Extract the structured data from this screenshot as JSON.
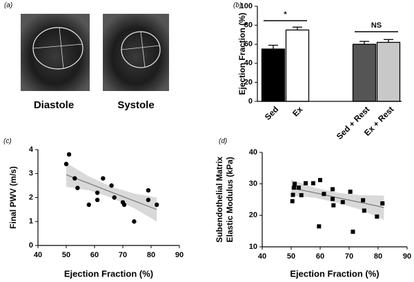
{
  "panel_a": {
    "label": "(a)",
    "captions": [
      "Diastole",
      "Systole"
    ]
  },
  "chart_data": [
    {
      "type": "bar",
      "label": "(b)",
      "ylabel": "Ejection  Fraction (%)",
      "categories": [
        "Sed",
        "Ex",
        "Sed + Rest",
        "Ex + Rest"
      ],
      "values": [
        55,
        75,
        60,
        62
      ],
      "errors": [
        4,
        3,
        3,
        3
      ],
      "colors": [
        "#000000",
        "#ffffff",
        "#555555",
        "#c8c8c8"
      ],
      "ylim": [
        0,
        100
      ],
      "yticks": [
        0,
        20,
        40,
        60,
        80,
        100
      ],
      "annotations": [
        "*",
        "NS"
      ]
    },
    {
      "type": "scatter",
      "label": "(c)",
      "xlabel": "Ejection Fraction (%)",
      "ylabel": "Final PWV (m/s)",
      "x": [
        51,
        50,
        53,
        54,
        58,
        61,
        61,
        63,
        66,
        67,
        70,
        70.5,
        74,
        79,
        79,
        82
      ],
      "y": [
        3.8,
        3.4,
        2.8,
        2.4,
        1.7,
        2.2,
        1.9,
        2.8,
        2.5,
        2.0,
        1.8,
        1.7,
        1.0,
        2.3,
        1.9,
        1.7
      ],
      "color": "#000000",
      "xlim": [
        40,
        90
      ],
      "xticks": [
        40,
        50,
        60,
        70,
        80,
        90
      ],
      "ylim": [
        0,
        4
      ],
      "yticks": [
        0,
        1,
        2,
        3,
        4
      ],
      "fit": {
        "x": [
          50,
          58,
          66,
          74,
          82
        ],
        "y": [
          2.95,
          2.59,
          2.22,
          1.86,
          1.5
        ],
        "lower": [
          2.45,
          2.3,
          2.0,
          1.55,
          1.0
        ],
        "upper": [
          3.45,
          2.88,
          2.45,
          2.17,
          2.0
        ]
      }
    },
    {
      "type": "scatter",
      "label": "(d)",
      "xlabel": "Ejection Fraction (%)",
      "ylabel": [
        "Subendothelial Matrix",
        "Elastic Modulus (kPa)"
      ],
      "x": [
        50.4,
        50.6,
        51,
        51.2,
        52.6,
        53.5,
        55,
        57.6,
        59.6,
        60,
        61.3,
        64.3,
        64.3,
        64.6,
        67.8,
        70.4,
        71.3,
        74.8,
        75.2,
        79.6,
        81.5
      ],
      "y": [
        24.5,
        26.5,
        28.8,
        30,
        28.8,
        26.4,
        30.2,
        30.2,
        16.5,
        31.2,
        26.8,
        28.3,
        25.2,
        23.2,
        24.2,
        27.5,
        14.8,
        24.8,
        21.5,
        19.6,
        23.8
      ],
      "color": "#000000",
      "xlim": [
        40,
        90
      ],
      "xticks": [
        40,
        50,
        60,
        70,
        80,
        90
      ],
      "ylim": [
        10,
        40
      ],
      "yticks": [
        10,
        20,
        30,
        40
      ],
      "fit": {
        "x": [
          50,
          58,
          66,
          74,
          82
        ],
        "y": [
          28.7,
          27.2,
          25.6,
          24.1,
          22.5
        ],
        "lower": [
          26.3,
          25.6,
          24.0,
          21.8,
          18.5
        ],
        "upper": [
          31.3,
          28.8,
          27.2,
          26.4,
          26.3
        ]
      }
    }
  ]
}
